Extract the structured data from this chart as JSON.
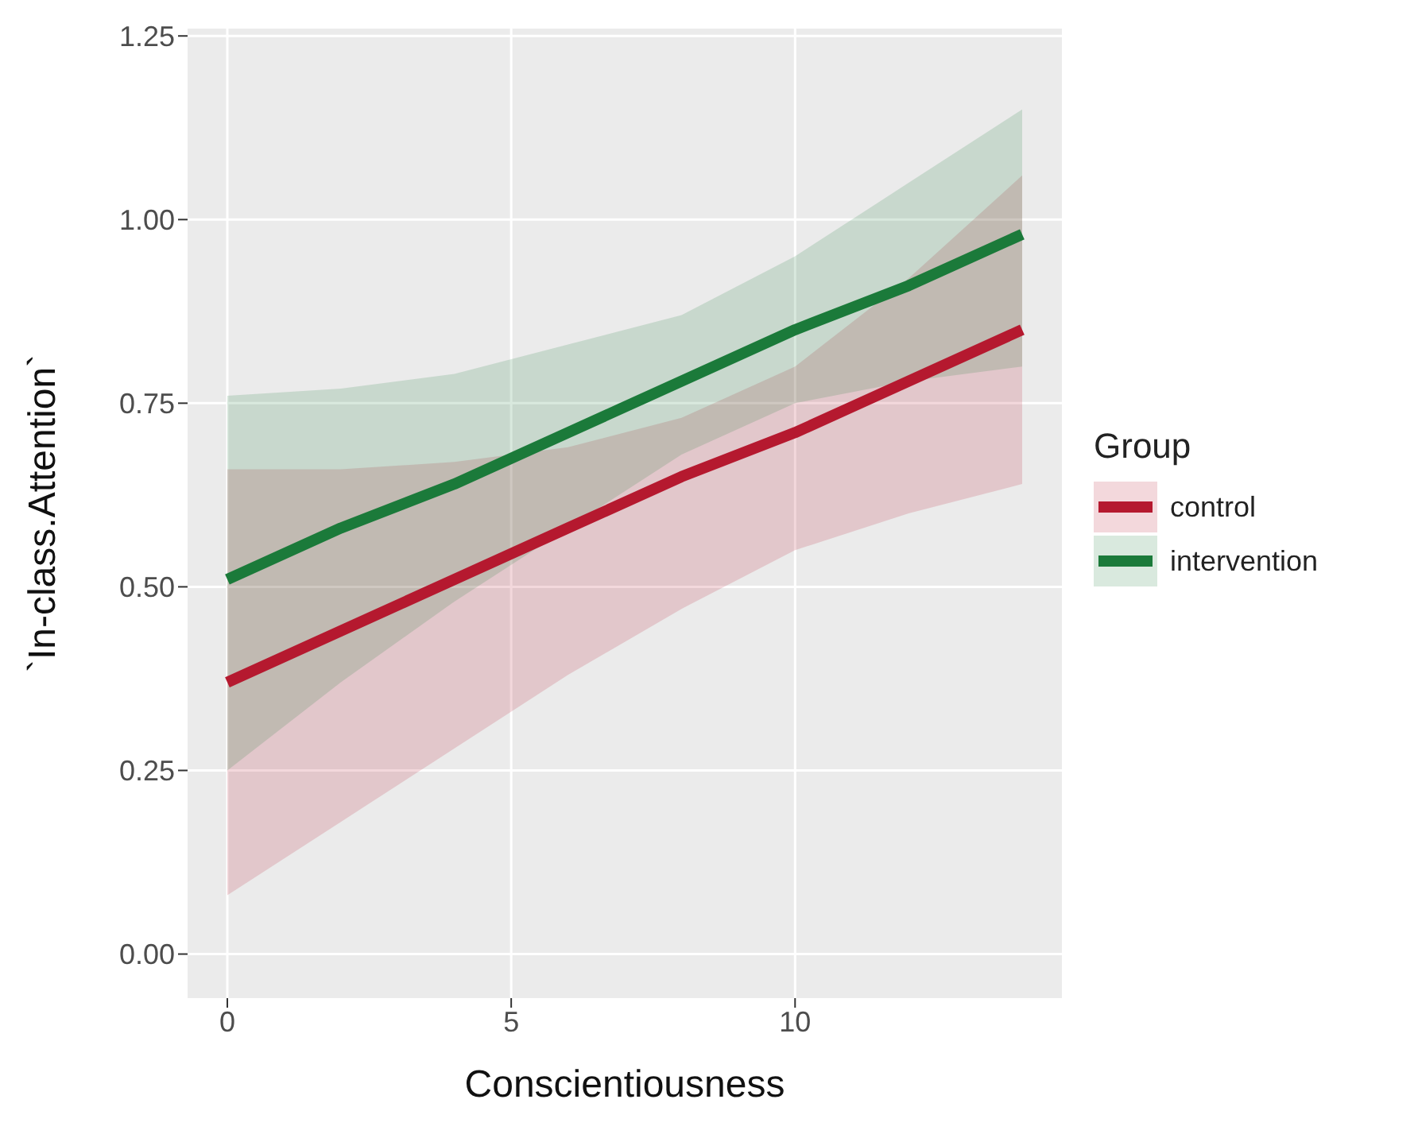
{
  "chart_data": {
    "type": "line",
    "xlabel": "Conscientiousness",
    "ylabel": "`In-class.Attention`",
    "legend_title": "Group",
    "x": [
      0,
      2,
      4,
      6,
      8,
      10,
      12,
      14
    ],
    "series": [
      {
        "name": "control",
        "color": "#b5192f",
        "values": [
          0.37,
          0.44,
          0.51,
          0.58,
          0.65,
          0.71,
          0.78,
          0.85
        ],
        "lower": [
          0.08,
          0.18,
          0.28,
          0.38,
          0.47,
          0.55,
          0.6,
          0.64
        ],
        "upper": [
          0.66,
          0.66,
          0.67,
          0.69,
          0.73,
          0.8,
          0.92,
          1.06
        ]
      },
      {
        "name": "intervention",
        "color": "#1b7a3a",
        "values": [
          0.51,
          0.58,
          0.64,
          0.71,
          0.78,
          0.85,
          0.91,
          0.98
        ],
        "lower": [
          0.25,
          0.37,
          0.48,
          0.58,
          0.68,
          0.75,
          0.78,
          0.8
        ],
        "upper": [
          0.76,
          0.77,
          0.79,
          0.83,
          0.87,
          0.95,
          1.05,
          1.15
        ]
      }
    ],
    "xlim": [
      -0.7,
      14.7
    ],
    "xticks": [
      0,
      5,
      10
    ],
    "ylim": [
      -0.06,
      1.26
    ],
    "yticks": [
      {
        "value": 0,
        "label": "0.00"
      },
      {
        "value": 0.25,
        "label": "0.25"
      },
      {
        "value": 0.5,
        "label": "0.50"
      },
      {
        "value": 0.75,
        "label": "0.75"
      },
      {
        "value": 1,
        "label": "1.00"
      },
      {
        "value": 1.25,
        "label": "1.25"
      }
    ],
    "grid": true,
    "legend": "right",
    "marker": "none",
    "line_style": "solid"
  }
}
